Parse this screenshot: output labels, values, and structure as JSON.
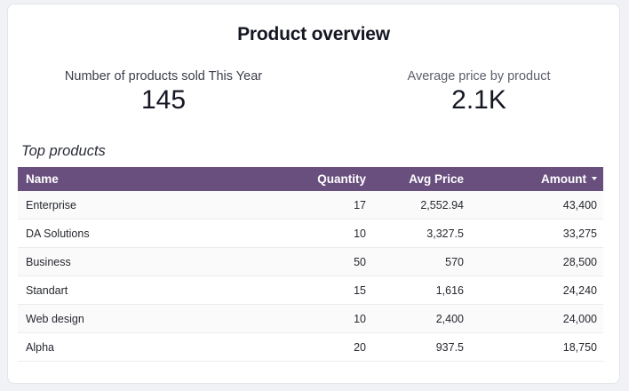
{
  "title": "Product overview",
  "kpis": {
    "left": {
      "label": "Number of products sold This Year",
      "value": "145"
    },
    "right": {
      "label": "Average price by product",
      "value": "2.1K"
    }
  },
  "table": {
    "title": "Top products",
    "headers": {
      "name": "Name",
      "quantity": "Quantity",
      "avg_price": "Avg Price",
      "amount": "Amount"
    },
    "sort_icon": "caret-down-icon",
    "rows": [
      {
        "name": "Enterprise",
        "quantity": "17",
        "avg_price": "2,552.94",
        "amount": "43,400"
      },
      {
        "name": "DA Solutions",
        "quantity": "10",
        "avg_price": "3,327.5",
        "amount": "33,275"
      },
      {
        "name": "Business",
        "quantity": "50",
        "avg_price": "570",
        "amount": "28,500"
      },
      {
        "name": "Standart",
        "quantity": "15",
        "avg_price": "1,616",
        "amount": "24,240"
      },
      {
        "name": "Web design",
        "quantity": "10",
        "avg_price": "2,400",
        "amount": "24,000"
      },
      {
        "name": "Alpha",
        "quantity": "20",
        "avg_price": "937.5",
        "amount": "18,750"
      }
    ]
  },
  "colors": {
    "header_bg": "#694f7e",
    "text": "#141622"
  }
}
